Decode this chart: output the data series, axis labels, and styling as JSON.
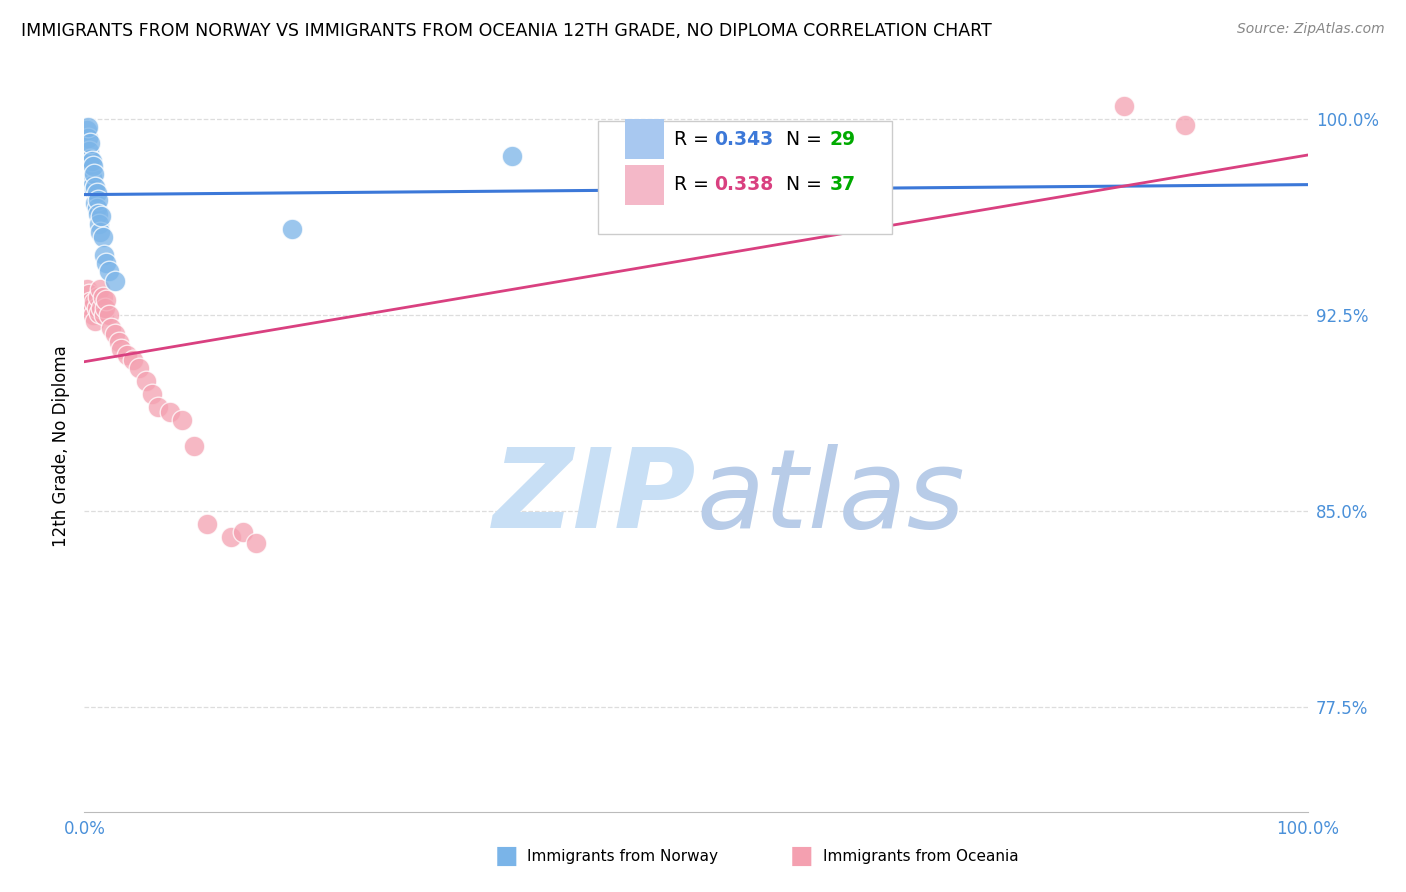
{
  "title": "IMMIGRANTS FROM NORWAY VS IMMIGRANTS FROM OCEANIA 12TH GRADE, NO DIPLOMA CORRELATION CHART",
  "source": "Source: ZipAtlas.com",
  "ylabel": "12th Grade, No Diploma",
  "xlim": [
    0.0,
    1.0
  ],
  "ylim": [
    0.735,
    1.015
  ],
  "x_ticks": [
    0.0,
    0.1,
    0.2,
    0.3,
    0.4,
    0.5,
    0.6,
    0.7,
    0.8,
    0.9,
    1.0
  ],
  "x_tick_labels": [
    "0.0%",
    "",
    "",
    "",
    "",
    "",
    "",
    "",
    "",
    "",
    "100.0%"
  ],
  "y_ticks": [
    0.775,
    0.85,
    0.925,
    1.0
  ],
  "y_tick_labels": [
    "77.5%",
    "85.0%",
    "92.5%",
    "100.0%"
  ],
  "norway_R": 0.343,
  "norway_N": 29,
  "oceania_R": 0.338,
  "oceania_N": 37,
  "norway_color": "#7ab4e8",
  "oceania_color": "#f4a0b0",
  "norway_line_color": "#3c78d8",
  "oceania_line_color": "#d94080",
  "grid_color": "#dddddd",
  "norway_x": [
    0.002,
    0.003,
    0.003,
    0.004,
    0.004,
    0.005,
    0.005,
    0.006,
    0.006,
    0.007,
    0.007,
    0.008,
    0.008,
    0.009,
    0.009,
    0.01,
    0.01,
    0.011,
    0.011,
    0.012,
    0.013,
    0.014,
    0.015,
    0.016,
    0.018,
    0.02,
    0.025,
    0.17,
    0.35
  ],
  "norway_y": [
    0.996,
    0.993,
    0.997,
    0.988,
    0.983,
    0.985,
    0.991,
    0.978,
    0.984,
    0.975,
    0.982,
    0.973,
    0.979,
    0.968,
    0.974,
    0.972,
    0.966,
    0.969,
    0.964,
    0.96,
    0.957,
    0.963,
    0.955,
    0.948,
    0.945,
    0.942,
    0.938,
    0.958,
    0.986
  ],
  "oceania_x": [
    0.002,
    0.003,
    0.004,
    0.005,
    0.006,
    0.007,
    0.008,
    0.009,
    0.01,
    0.011,
    0.012,
    0.013,
    0.014,
    0.015,
    0.016,
    0.017,
    0.018,
    0.02,
    0.022,
    0.025,
    0.028,
    0.03,
    0.035,
    0.04,
    0.045,
    0.05,
    0.055,
    0.06,
    0.07,
    0.08,
    0.09,
    0.1,
    0.12,
    0.13,
    0.14,
    0.85,
    0.9
  ],
  "oceania_y": [
    0.935,
    0.928,
    0.933,
    0.93,
    0.928,
    0.925,
    0.93,
    0.923,
    0.928,
    0.932,
    0.926,
    0.935,
    0.928,
    0.932,
    0.925,
    0.928,
    0.931,
    0.925,
    0.92,
    0.918,
    0.915,
    0.912,
    0.91,
    0.908,
    0.905,
    0.9,
    0.895,
    0.89,
    0.888,
    0.885,
    0.875,
    0.845,
    0.84,
    0.842,
    0.838,
    1.005,
    0.998
  ],
  "watermark_zip": "ZIP",
  "watermark_atlas": "atlas",
  "watermark_color_zip": "#c8dff5",
  "watermark_color_atlas": "#b8cce8",
  "legend_box_color_norway": "#a8c8f0",
  "legend_box_color_oceania": "#f4b8c8",
  "legend_r_color": "#3c78d8",
  "legend_n_color": "#00aa00"
}
